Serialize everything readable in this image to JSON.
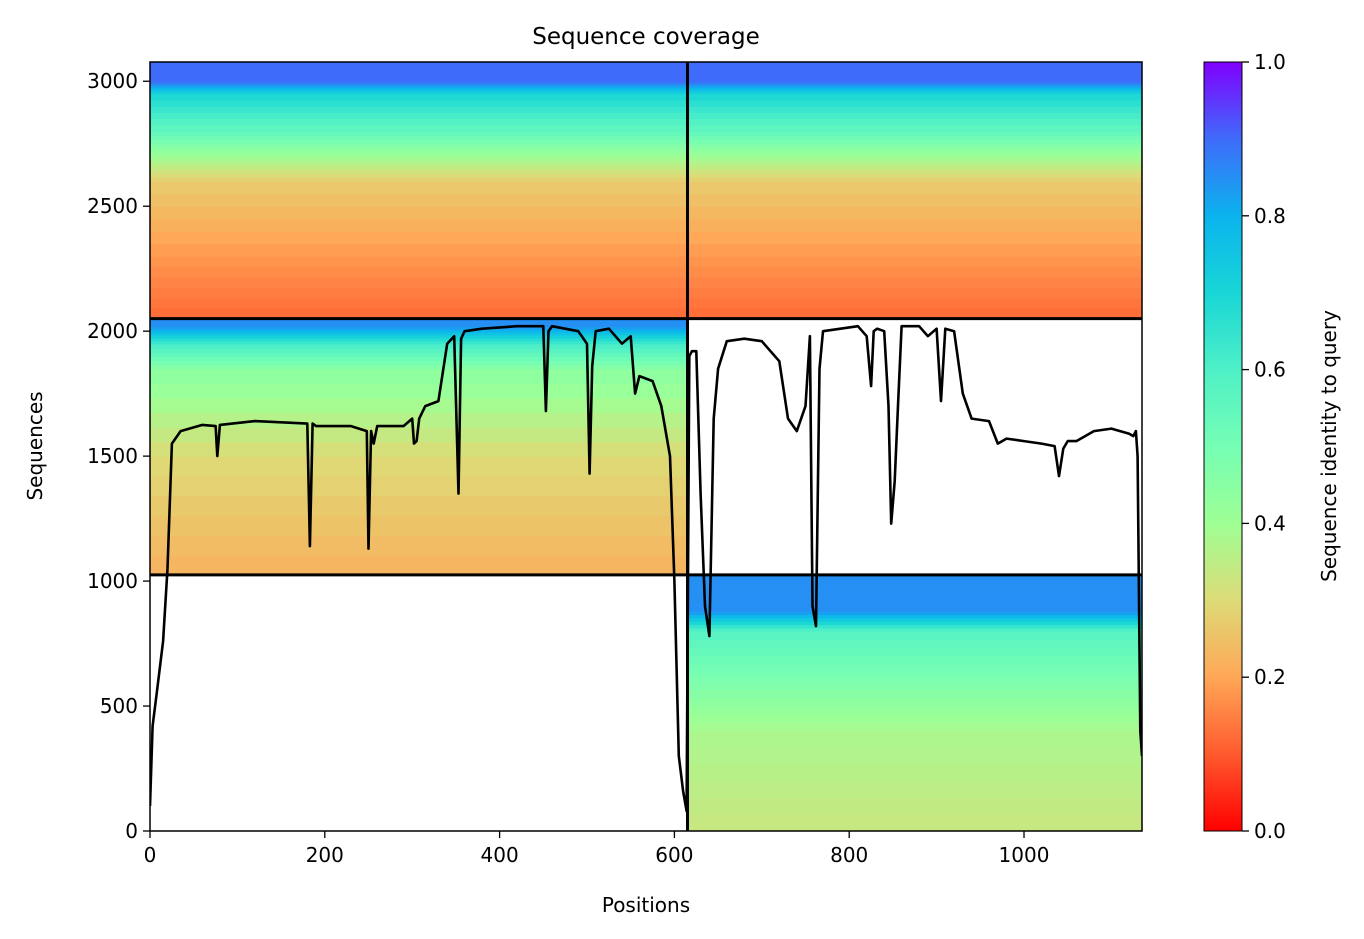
{
  "chart_data": {
    "type": "heatmap",
    "title": "Sequence coverage",
    "xlabel": "Positions",
    "ylabel": "Sequences",
    "xlim": [
      0,
      1135
    ],
    "ylim": [
      0,
      3077
    ],
    "x_ticks": [
      0,
      200,
      400,
      600,
      800,
      1000
    ],
    "y_ticks": [
      0,
      500,
      1000,
      1500,
      2000,
      2500,
      3000
    ],
    "colorbar": {
      "label": "Sequence identity to query",
      "range": [
        0.0,
        1.0
      ],
      "ticks": [
        "0.0",
        "0.2",
        "0.4",
        "0.6",
        "0.8",
        "1.0"
      ],
      "colormap": "rainbow_r"
    },
    "blocks": [
      {
        "x_range": [
          0,
          615
        ],
        "y_range": [
          2050,
          3077
        ],
        "identity_bands": [
          [
            2050,
            0.12
          ],
          [
            2300,
            0.18
          ],
          [
            2600,
            0.27
          ],
          [
            2700,
            0.4
          ],
          [
            2800,
            0.55
          ],
          [
            2950,
            0.7
          ],
          [
            3000,
            0.9
          ]
        ]
      },
      {
        "x_range": [
          615,
          1135
        ],
        "y_range": [
          2050,
          3077
        ],
        "identity_bands": [
          [
            2050,
            0.12
          ],
          [
            2300,
            0.18
          ],
          [
            2600,
            0.27
          ],
          [
            2700,
            0.4
          ],
          [
            2800,
            0.55
          ],
          [
            2950,
            0.7
          ],
          [
            3000,
            0.9
          ]
        ]
      },
      {
        "x_range": [
          0,
          615
        ],
        "y_range": [
          1025,
          2050
        ],
        "identity_bands": [
          [
            1025,
            0.22
          ],
          [
            1500,
            0.3
          ],
          [
            1850,
            0.45
          ],
          [
            1950,
            0.62
          ],
          [
            2020,
            0.85
          ]
        ]
      },
      {
        "x_range": [
          615,
          1135
        ],
        "y_range": [
          0,
          1025
        ],
        "identity_bands": [
          [
            0,
            0.33
          ],
          [
            400,
            0.38
          ],
          [
            600,
            0.48
          ],
          [
            800,
            0.58
          ],
          [
            880,
            0.85
          ]
        ]
      }
    ],
    "block_separators": {
      "x": [
        615
      ],
      "y": [
        1025,
        2050
      ]
    },
    "coverage_line": {
      "x": [
        0,
        3,
        8,
        15,
        20,
        25,
        35,
        60,
        75,
        77,
        80,
        120,
        180,
        183,
        186,
        190,
        230,
        248,
        250,
        253,
        256,
        260,
        290,
        300,
        302,
        305,
        308,
        315,
        330,
        340,
        348,
        353,
        356,
        360,
        380,
        420,
        450,
        453,
        456,
        460,
        490,
        500,
        503,
        506,
        510,
        525,
        540,
        550,
        555,
        560,
        575,
        585,
        595,
        600,
        605,
        610,
        614,
        617,
        620,
        625,
        630,
        635,
        640,
        645,
        650,
        660,
        680,
        700,
        710,
        720,
        730,
        740,
        750,
        755,
        758,
        762,
        766,
        770,
        790,
        810,
        820,
        825,
        828,
        832,
        840,
        845,
        848,
        852,
        856,
        860,
        880,
        890,
        900,
        905,
        910,
        920,
        930,
        940,
        960,
        970,
        975,
        980,
        1000,
        1020,
        1035,
        1040,
        1045,
        1050,
        1060,
        1080,
        1100,
        1110,
        1120,
        1125,
        1128,
        1130,
        1133,
        1135
      ],
      "y": [
        100,
        420,
        560,
        760,
        1050,
        1550,
        1600,
        1625,
        1620,
        1500,
        1625,
        1640,
        1630,
        1140,
        1630,
        1620,
        1620,
        1600,
        1130,
        1600,
        1550,
        1620,
        1620,
        1650,
        1550,
        1560,
        1650,
        1700,
        1720,
        1950,
        1980,
        1350,
        1970,
        2000,
        2010,
        2020,
        2020,
        1680,
        2000,
        2020,
        2000,
        1950,
        1430,
        1860,
        2000,
        2010,
        1950,
        1980,
        1750,
        1820,
        1800,
        1700,
        1500,
        1000,
        300,
        160,
        80,
        1900,
        1920,
        1920,
        1350,
        900,
        780,
        1650,
        1850,
        1960,
        1970,
        1960,
        1920,
        1880,
        1650,
        1600,
        1700,
        1980,
        900,
        820,
        1850,
        2000,
        2010,
        2020,
        1980,
        1780,
        2000,
        2010,
        2000,
        1700,
        1230,
        1400,
        1720,
        2020,
        2020,
        1980,
        2010,
        1720,
        2010,
        2000,
        1750,
        1650,
        1640,
        1550,
        1560,
        1570,
        1560,
        1550,
        1540,
        1420,
        1530,
        1560,
        1560,
        1600,
        1610,
        1600,
        1590,
        1580,
        1600,
        1500,
        400,
        300
      ]
    }
  }
}
